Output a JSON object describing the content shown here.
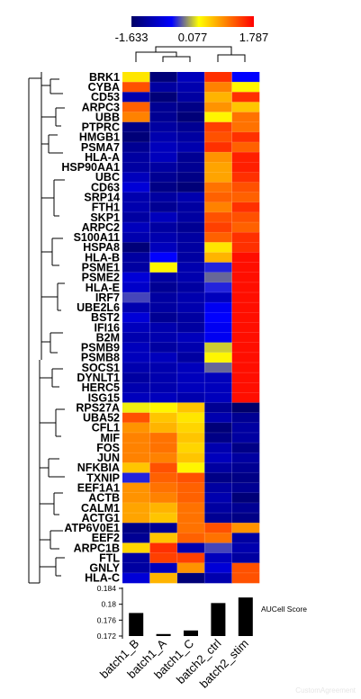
{
  "chart_data": [
    {
      "type": "heatmap",
      "colorbar": {
        "min": -1.633,
        "mid": 0.077,
        "max": 1.787,
        "min_label": "-1.633",
        "mid_label": "0.077",
        "max_label": "1.787",
        "colors": [
          "#000066",
          "#0000ff",
          "#ffff00",
          "#ff0000"
        ]
      },
      "columns": [
        "batch1_B",
        "batch1_A",
        "batch1_C",
        "batch2_ctrl",
        "batch2_stim"
      ],
      "rows": [
        "BRK1",
        "CYBA",
        "CD53",
        "ARPC3",
        "UBB",
        "PTPRC",
        "HMGB1",
        "PSMA7",
        "HLA-A",
        "HSP90AA1",
        "UBC",
        "CD63",
        "SRP14",
        "FTH1",
        "SKP1",
        "ARPC2",
        "S100A11",
        "HSPA8",
        "HLA-B",
        "PSME1",
        "PSME2",
        "HLA-E",
        "IRF7",
        "UBE2L6",
        "BST2",
        "IFI16",
        "B2M",
        "PSMB9",
        "PSMB8",
        "SOCS1",
        "DYNLT1",
        "HERC5",
        "ISG15",
        "RPS27A",
        "UBA52",
        "CFL1",
        "MIF",
        "FOS",
        "JUN",
        "NFKBIA",
        "TXNIP",
        "EEF1A1",
        "ACTB",
        "CALM1",
        "ACTG1",
        "ATP6V0E1",
        "EEF2",
        "ARPC1B",
        "FTL",
        "GNLY",
        "HLA-C"
      ],
      "values": [
        [
          0.4,
          -1.5,
          -1.0,
          1.5,
          -0.5
        ],
        [
          1.3,
          -1.2,
          -1.1,
          1.0,
          0.3
        ],
        [
          -1.1,
          -1.5,
          -1.2,
          0.7,
          1.5
        ],
        [
          1.2,
          -1.3,
          -1.4,
          0.9,
          0.6
        ],
        [
          1.0,
          -1.3,
          -1.5,
          0.3,
          1.1
        ],
        [
          -1.4,
          -1.2,
          -1.3,
          1.4,
          1.1
        ],
        [
          -1.5,
          -1.1,
          -1.2,
          1.3,
          1.5
        ],
        [
          -1.3,
          -1.0,
          -1.1,
          1.5,
          1.2
        ],
        [
          -1.2,
          -1.0,
          -1.3,
          0.9,
          1.6
        ],
        [
          -1.2,
          -1.2,
          -1.3,
          0.8,
          1.6
        ],
        [
          -1.0,
          -1.3,
          -1.4,
          0.8,
          1.5
        ],
        [
          -0.8,
          -1.4,
          -1.5,
          1.1,
          1.3
        ],
        [
          -1.1,
          -1.2,
          -1.1,
          1.2,
          1.2
        ],
        [
          -1.1,
          -1.3,
          -1.2,
          1.0,
          1.5
        ],
        [
          -1.2,
          -1.0,
          -1.2,
          1.3,
          1.3
        ],
        [
          -1.0,
          -1.2,
          -1.3,
          1.4,
          1.2
        ],
        [
          -1.1,
          -1.1,
          -1.2,
          1.2,
          1.5
        ],
        [
          -1.5,
          -1.0,
          -1.2,
          0.4,
          1.5
        ],
        [
          -1.2,
          -0.5,
          -1.2,
          0.7,
          1.7
        ],
        [
          -1.2,
          0.3,
          -1.1,
          -0.4,
          1.7
        ],
        [
          -0.8,
          -1.2,
          -1.1,
          -0.2,
          1.7
        ],
        [
          -0.9,
          -1.3,
          -1.2,
          -0.4,
          1.7
        ],
        [
          -0.3,
          -1.2,
          -1.1,
          -1.0,
          1.7
        ],
        [
          -1.1,
          -1.2,
          -1.1,
          -0.6,
          1.7
        ],
        [
          -0.8,
          -1.3,
          -1.2,
          -0.5,
          1.7
        ],
        [
          -1.0,
          -1.1,
          -1.2,
          -0.6,
          1.7
        ],
        [
          -1.1,
          -1.1,
          -1.0,
          -0.6,
          1.7
        ],
        [
          -1.0,
          -1.2,
          -1.1,
          0.1,
          1.7
        ],
        [
          -1.0,
          -1.0,
          -1.2,
          0.3,
          1.7
        ],
        [
          -1.1,
          -1.1,
          -1.0,
          -0.2,
          1.7
        ],
        [
          -1.2,
          -1.1,
          -1.0,
          -1.0,
          1.7
        ],
        [
          -1.1,
          -1.1,
          -1.0,
          -1.0,
          1.7
        ],
        [
          -1.0,
          -1.0,
          -1.1,
          -1.0,
          1.7
        ],
        [
          0.2,
          0.3,
          0.6,
          -1.3,
          -1.6
        ],
        [
          1.3,
          0.6,
          0.4,
          -1.1,
          -1.3
        ],
        [
          0.9,
          0.7,
          0.5,
          -1.5,
          -1.2
        ],
        [
          1.0,
          1.1,
          0.6,
          -1.4,
          -1.2
        ],
        [
          1.0,
          1.1,
          0.5,
          -1.1,
          -1.4
        ],
        [
          1.0,
          1.0,
          0.6,
          -1.0,
          -1.2
        ],
        [
          0.6,
          1.3,
          0.3,
          -1.2,
          -1.3
        ],
        [
          -0.4,
          1.2,
          1.3,
          -1.4,
          -1.4
        ],
        [
          0.9,
          1.1,
          1.2,
          -1.2,
          -1.3
        ],
        [
          0.9,
          1.0,
          1.2,
          -1.1,
          -1.5
        ],
        [
          0.8,
          0.7,
          1.1,
          -1.2,
          -1.3
        ],
        [
          0.8,
          0.6,
          1.1,
          -1.3,
          -1.4
        ],
        [
          -1.4,
          -1.3,
          1.1,
          1.3,
          0.9
        ],
        [
          -1.3,
          0.6,
          1.2,
          1.1,
          -1.2
        ],
        [
          0.5,
          1.5,
          -1.1,
          -0.3,
          -1.1
        ],
        [
          -1.2,
          1.4,
          1.4,
          -1.0,
          -1.2
        ],
        [
          -1.2,
          -1.0,
          0.9,
          -0.8,
          1.3
        ],
        [
          -0.8,
          0.7,
          -1.5,
          -1.1,
          1.3
        ]
      ]
    },
    {
      "type": "bar",
      "categories": [
        "batch1_B",
        "batch1_A",
        "batch1_C",
        "batch2_ctrl",
        "batch2_stim"
      ],
      "values": [
        0.1778,
        0.1725,
        0.1734,
        0.1803,
        0.1817
      ],
      "ylim": [
        0.172,
        0.184
      ],
      "yticks": [
        "0.184",
        "0.18",
        "0.176",
        "0.172"
      ],
      "legend_label": "AUCell Score",
      "bar_color": "#000000"
    }
  ],
  "watermark": "CustomAgreement"
}
